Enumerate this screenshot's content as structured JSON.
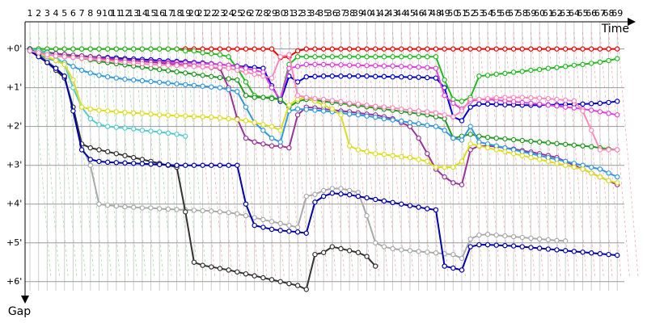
{
  "chart_data": {
    "type": "line",
    "x_axis_label": "Time",
    "y_axis_label": "Gap",
    "categories": [
      1,
      2,
      3,
      4,
      5,
      6,
      7,
      8,
      9,
      10,
      11,
      12,
      13,
      14,
      15,
      16,
      17,
      18,
      19,
      20,
      21,
      22,
      23,
      24,
      25,
      26,
      27,
      28,
      29,
      30,
      31,
      32,
      33,
      34,
      35,
      36,
      37,
      38,
      39,
      40,
      41,
      42,
      43,
      44,
      45,
      46,
      47,
      48,
      49,
      50,
      51,
      52,
      53,
      54,
      55,
      56,
      57,
      58,
      59,
      60,
      61,
      62,
      63,
      64,
      65,
      66,
      67,
      68,
      69
    ],
    "ylim": [
      -0.7,
      6.65
    ],
    "y_direction": "down",
    "grid": true,
    "yticks": [
      {
        "value": 0,
        "label": "+0'"
      },
      {
        "value": 1,
        "label": "+1'"
      },
      {
        "value": 2,
        "label": "+2'"
      },
      {
        "value": 3,
        "label": "+3'"
      },
      {
        "value": 4,
        "label": "+4'"
      },
      {
        "value": 5,
        "label": "+5'"
      },
      {
        "value": 6,
        "label": "+6'"
      }
    ],
    "series": [
      {
        "color": "#ee0000",
        "values": [
          0,
          0,
          0,
          0,
          0,
          0,
          0,
          0,
          0,
          0,
          0,
          0,
          0,
          0,
          0,
          0,
          0,
          0,
          0,
          0,
          0,
          0,
          0,
          0,
          0,
          0,
          0,
          0,
          0,
          0.22,
          0.2,
          0.05,
          0,
          0,
          0,
          0,
          0,
          0,
          0,
          0,
          0,
          0,
          0,
          0,
          0,
          0,
          0,
          0,
          0,
          0,
          0,
          0,
          0,
          0,
          0,
          0,
          0,
          0,
          0,
          0,
          0,
          0,
          0,
          0,
          0,
          0,
          0,
          0,
          0
        ]
      },
      {
        "color": "#22bb22",
        "values": [
          0,
          0,
          0,
          0,
          0,
          0,
          0,
          0,
          0,
          0,
          0,
          0,
          0,
          0,
          0,
          0,
          0,
          0,
          0.05,
          0.05,
          0.1,
          0.12,
          0.15,
          0.2,
          0.5,
          0.85,
          1.2,
          1.25,
          1.25,
          1.3,
          0.4,
          0.2,
          0.2,
          0.2,
          0.2,
          0.2,
          0.2,
          0.2,
          0.2,
          0.2,
          0.2,
          0.2,
          0.2,
          0.2,
          0.2,
          0.2,
          0.2,
          0.2,
          0.8,
          1.3,
          1.35,
          1.25,
          0.7,
          0.68,
          0.65,
          0.63,
          0.6,
          0.58,
          0.55,
          0.53,
          0.5,
          0.48,
          0.45,
          0.42,
          0.4,
          0.37,
          0.34,
          0.3,
          0.25
        ]
      },
      {
        "color": "#0000cc",
        "values": [
          0,
          0.05,
          0.1,
          0.12,
          0.15,
          0.17,
          0.18,
          0.2,
          0.21,
          0.22,
          0.23,
          0.25,
          0.26,
          0.27,
          0.28,
          0.3,
          0.31,
          0.32,
          0.33,
          0.35,
          0.36,
          0.38,
          0.4,
          0.42,
          0.44,
          0.46,
          0.48,
          0.5,
          0.95,
          1.35,
          0.7,
          0.85,
          0.72,
          0.71,
          0.7,
          0.7,
          0.7,
          0.7,
          0.7,
          0.7,
          0.71,
          0.71,
          0.72,
          0.72,
          0.73,
          0.73,
          0.74,
          0.75,
          1.0,
          1.75,
          1.85,
          1.5,
          1.42,
          1.42,
          1.43,
          1.44,
          1.44,
          1.45,
          1.45,
          1.45,
          1.44,
          1.44,
          1.43,
          1.42,
          1.42,
          1.41,
          1.4,
          1.38,
          1.35
        ]
      },
      {
        "color": "#dd44dd",
        "values": [
          0.05,
          0.1,
          0.15,
          0.18,
          0.2,
          0.22,
          0.24,
          0.25,
          0.26,
          0.27,
          0.28,
          0.29,
          0.3,
          0.31,
          0.32,
          0.33,
          0.34,
          0.35,
          0.36,
          0.37,
          0.38,
          0.39,
          0.4,
          0.42,
          0.45,
          0.5,
          0.55,
          0.6,
          1.0,
          1.3,
          0.5,
          0.45,
          0.4,
          0.4,
          0.4,
          0.41,
          0.41,
          0.42,
          0.42,
          0.43,
          0.43,
          0.44,
          0.44,
          0.45,
          0.46,
          0.47,
          0.48,
          0.5,
          1.2,
          1.4,
          1.55,
          1.35,
          1.3,
          1.3,
          1.32,
          1.34,
          1.36,
          1.38,
          1.4,
          1.42,
          1.45,
          1.47,
          1.5,
          1.52,
          1.55,
          1.58,
          1.62,
          1.66,
          1.7
        ]
      },
      {
        "color": "#229922",
        "values": [
          0,
          0.04,
          0.08,
          0.12,
          0.16,
          0.2,
          0.24,
          0.28,
          0.32,
          0.35,
          0.38,
          0.41,
          0.44,
          0.47,
          0.5,
          0.53,
          0.56,
          0.59,
          0.62,
          0.65,
          0.68,
          0.71,
          0.74,
          0.77,
          0.8,
          1.2,
          1.25,
          1.25,
          1.28,
          1.3,
          1.5,
          1.35,
          1.3,
          1.32,
          1.35,
          1.38,
          1.4,
          1.43,
          1.46,
          1.49,
          1.52,
          1.55,
          1.58,
          1.61,
          1.64,
          1.67,
          1.7,
          1.75,
          1.8,
          2.3,
          2.25,
          2.2,
          2.25,
          2.28,
          2.3,
          2.32,
          2.34,
          2.36,
          2.38,
          2.4,
          2.42,
          2.44,
          2.46,
          2.48,
          2.5,
          2.52,
          2.55,
          2.58,
          2.6
        ]
      },
      {
        "color": "#993399",
        "values": [
          0.05,
          0.08,
          0.1,
          0.12,
          0.14,
          0.16,
          0.18,
          0.2,
          0.22,
          0.24,
          0.26,
          0.28,
          0.3,
          0.32,
          0.34,
          0.36,
          0.38,
          0.4,
          0.42,
          0.44,
          0.46,
          0.48,
          0.5,
          1.0,
          1.8,
          2.3,
          2.4,
          2.45,
          2.5,
          2.5,
          2.55,
          1.7,
          1.5,
          1.52,
          1.55,
          1.57,
          1.6,
          1.62,
          1.65,
          1.68,
          1.7,
          1.75,
          1.8,
          1.9,
          2.0,
          2.3,
          2.7,
          3.1,
          3.3,
          3.45,
          3.5,
          2.6,
          2.5,
          2.5,
          2.52,
          2.55,
          2.58,
          2.62,
          2.66,
          2.7,
          2.75,
          2.8,
          2.9,
          3.0,
          3.1,
          3.2,
          3.3,
          3.4,
          3.5
        ]
      },
      {
        "color": "#3399dd",
        "values": [
          0.05,
          0.15,
          0.25,
          0.3,
          0.35,
          0.45,
          0.55,
          0.62,
          0.68,
          0.72,
          0.75,
          0.78,
          0.8,
          0.82,
          0.84,
          0.86,
          0.88,
          0.9,
          0.92,
          0.94,
          0.96,
          0.98,
          1.0,
          1.05,
          1.1,
          1.5,
          1.9,
          2.1,
          2.3,
          2.4,
          1.6,
          1.55,
          1.56,
          1.58,
          1.6,
          1.62,
          1.65,
          1.68,
          1.7,
          1.73,
          1.76,
          1.8,
          1.83,
          1.86,
          1.9,
          1.93,
          1.97,
          2.0,
          2.1,
          2.3,
          2.35,
          2.0,
          2.4,
          2.45,
          2.5,
          2.55,
          2.6,
          2.65,
          2.7,
          2.75,
          2.8,
          2.85,
          2.9,
          2.95,
          3.0,
          3.05,
          3.1,
          3.2,
          3.3
        ]
      },
      {
        "color": "#55cccc",
        "values": [
          0,
          0.05,
          0.1,
          0.2,
          0.4,
          1.0,
          1.5,
          1.8,
          1.95,
          2.0,
          2.02,
          2.04,
          2.06,
          2.1,
          2.12,
          2.14,
          2.17,
          2.2,
          2.25,
          null,
          null,
          null,
          null,
          null,
          null,
          null,
          null,
          null,
          null,
          null,
          null,
          null,
          null,
          null,
          null,
          null,
          null,
          null,
          null,
          null,
          null,
          null,
          null,
          null,
          null,
          null,
          null,
          null,
          null,
          null,
          null,
          null,
          null,
          null,
          null,
          null,
          null,
          null,
          null,
          null,
          null,
          null,
          null,
          null,
          null,
          null,
          null,
          null,
          null
        ]
      },
      {
        "color": "#dddd22",
        "values": [
          0.05,
          0.1,
          0.2,
          0.3,
          0.4,
          0.8,
          1.5,
          1.55,
          1.58,
          1.6,
          1.62,
          1.64,
          1.65,
          1.66,
          1.68,
          1.7,
          1.71,
          1.72,
          1.73,
          1.74,
          1.75,
          1.76,
          1.78,
          1.8,
          1.82,
          1.85,
          1.9,
          1.95,
          2.0,
          2.1,
          1.45,
          1.3,
          1.25,
          1.35,
          1.45,
          1.55,
          1.7,
          2.5,
          2.6,
          2.65,
          2.7,
          2.72,
          2.75,
          2.78,
          2.8,
          2.85,
          2.9,
          3.05,
          3.05,
          3.05,
          2.9,
          2.45,
          2.5,
          2.55,
          2.6,
          2.65,
          2.7,
          2.75,
          2.8,
          2.85,
          2.9,
          2.95,
          3.0,
          3.05,
          3.1,
          3.2,
          3.3,
          3.4,
          3.45
        ]
      },
      {
        "color": "#aaaaaa",
        "values": [
          0.05,
          0.15,
          0.3,
          0.5,
          0.7,
          1.5,
          2.5,
          3.0,
          4.0,
          4.03,
          4.05,
          4.07,
          4.08,
          4.1,
          4.1,
          4.12,
          4.13,
          4.14,
          4.15,
          4.16,
          4.17,
          4.18,
          4.2,
          4.22,
          4.25,
          4.3,
          4.35,
          4.4,
          4.45,
          4.5,
          4.55,
          4.6,
          3.8,
          3.75,
          3.65,
          3.6,
          3.6,
          3.65,
          3.7,
          4.3,
          5.0,
          5.1,
          5.15,
          5.18,
          5.2,
          5.22,
          5.24,
          5.26,
          5.28,
          5.3,
          5.4,
          4.9,
          4.8,
          4.78,
          4.8,
          4.82,
          4.84,
          4.86,
          4.88,
          4.9,
          4.92,
          4.94,
          4.95,
          null,
          null,
          null,
          null,
          null,
          null
        ]
      },
      {
        "color": "#333333",
        "values": [
          0,
          0.15,
          0.35,
          0.55,
          0.75,
          1.5,
          2.45,
          2.55,
          2.6,
          2.65,
          2.7,
          2.75,
          2.8,
          2.85,
          2.9,
          2.95,
          3.0,
          3.05,
          4.2,
          5.5,
          5.58,
          5.62,
          5.66,
          5.7,
          5.75,
          5.8,
          5.85,
          5.9,
          5.95,
          6.0,
          6.05,
          6.1,
          6.2,
          5.3,
          5.25,
          5.1,
          5.15,
          5.2,
          5.25,
          5.35,
          5.6,
          null,
          null,
          null,
          null,
          null,
          null,
          null,
          null,
          null,
          null,
          null,
          null,
          null,
          null,
          null,
          null,
          null,
          null,
          null,
          null,
          null,
          null,
          null,
          null,
          null,
          null,
          null,
          null
        ]
      },
      {
        "color": "#0000aa",
        "values": [
          0.05,
          0.2,
          0.35,
          0.5,
          0.7,
          1.6,
          2.6,
          2.85,
          2.9,
          2.92,
          2.93,
          2.94,
          2.95,
          2.96,
          2.97,
          2.98,
          2.99,
          3.0,
          3.0,
          3.0,
          3.0,
          3.0,
          3.0,
          3.0,
          3.0,
          4.0,
          4.55,
          4.6,
          4.65,
          4.68,
          4.7,
          4.72,
          4.75,
          3.95,
          3.8,
          3.72,
          3.74,
          3.76,
          3.8,
          3.84,
          3.88,
          3.92,
          3.96,
          4.0,
          4.04,
          4.08,
          4.12,
          4.15,
          5.6,
          5.65,
          5.7,
          5.1,
          5.05,
          5.05,
          5.06,
          5.07,
          5.08,
          5.1,
          5.12,
          5.14,
          5.16,
          5.18,
          5.2,
          5.22,
          5.24,
          5.26,
          5.28,
          5.3,
          5.32
        ]
      },
      {
        "color": "#ff88bb",
        "values": [
          0.05,
          0.1,
          0.15,
          0.18,
          0.2,
          0.22,
          0.24,
          0.26,
          0.28,
          0.3,
          0.32,
          0.34,
          0.36,
          0.38,
          0.4,
          0.41,
          0.42,
          0.43,
          0.44,
          0.45,
          0.46,
          0.47,
          0.48,
          0.5,
          0.55,
          0.6,
          0.65,
          0.7,
          0.75,
          0.2,
          0.15,
          1.2,
          1.25,
          1.28,
          1.3,
          1.33,
          1.36,
          1.4,
          1.42,
          1.45,
          1.48,
          1.5,
          1.52,
          1.55,
          1.58,
          1.6,
          1.62,
          1.65,
          1.7,
          1.75,
          1.6,
          1.3,
          1.3,
          1.28,
          1.26,
          1.25,
          1.25,
          1.25,
          1.26,
          1.27,
          1.28,
          1.3,
          1.32,
          1.34,
          1.6,
          2.1,
          2.6,
          2.6,
          2.6
        ]
      }
    ]
  }
}
